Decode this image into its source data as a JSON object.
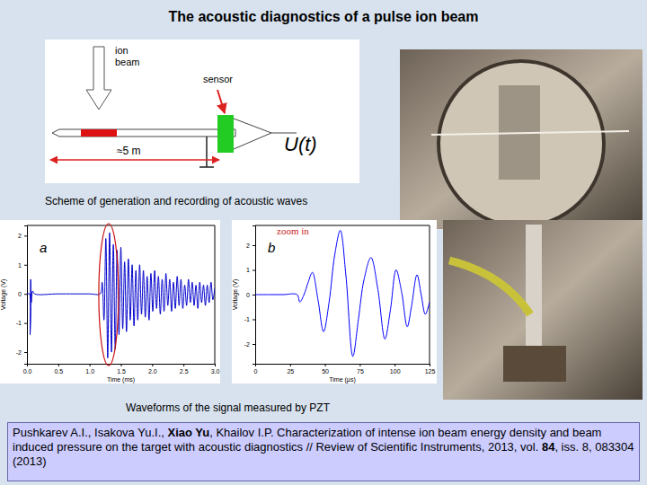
{
  "title": "The acoustic diagnostics of a pulse ion beam",
  "scheme": {
    "ion_beam_label": [
      "ion",
      "beam"
    ],
    "sensor_label": "sensor",
    "signal_label": "U(t)",
    "distance_label": "≈5 m",
    "caption": "Scheme of generation and recording of acoustic waves"
  },
  "chart_data": [
    {
      "type": "line",
      "panel_label": "a",
      "x_label": "Time (ms)",
      "y_label": "Voltage (V)",
      "xlim": [
        0,
        3.0
      ],
      "ylim": [
        -2.4,
        2.35
      ],
      "xticks": [
        {
          "value": 0,
          "label": "0.0"
        },
        {
          "value": 0.5,
          "label": "0.5"
        },
        {
          "value": 1.0,
          "label": "1.0"
        },
        {
          "value": 1.5,
          "label": "1.5"
        },
        {
          "value": 2.0,
          "label": "2.0"
        },
        {
          "value": 2.5,
          "label": "2.5"
        },
        {
          "value": 3.0,
          "label": "3.0"
        }
      ],
      "yticks": [
        -2,
        -1,
        0,
        1,
        2
      ],
      "grid": false,
      "x": [
        0.0,
        0.04,
        0.05,
        0.06,
        0.07,
        0.09,
        0.12,
        0.5,
        1.0,
        1.17,
        1.2,
        1.23,
        1.26,
        1.29,
        1.32,
        1.35,
        1.38,
        1.41,
        1.44,
        1.47,
        1.5,
        1.53,
        1.56,
        1.59,
        1.62,
        1.65,
        1.68,
        1.71,
        1.74,
        1.77,
        1.8,
        1.83,
        1.86,
        1.89,
        1.92,
        1.95,
        1.98,
        2.01,
        2.04,
        2.07,
        2.1,
        2.13,
        2.16,
        2.19,
        2.22,
        2.25,
        2.28,
        2.31,
        2.34,
        2.37,
        2.4,
        2.43,
        2.46,
        2.49,
        2.52,
        2.55,
        2.58,
        2.61,
        2.64,
        2.67,
        2.7,
        2.73,
        2.76,
        2.79,
        2.82,
        2.85,
        2.88,
        2.91,
        2.94,
        2.97,
        3.0
      ],
      "series": [
        {
          "color": "#0000cc",
          "values": [
            0,
            0,
            -1.4,
            0.5,
            -0.3,
            0.1,
            0,
            0,
            0,
            0,
            0.4,
            -0.9,
            1.9,
            -2.2,
            2.1,
            -2.0,
            1.7,
            -1.9,
            1.5,
            -1.4,
            1.6,
            -1.2,
            1.1,
            -1.3,
            1.2,
            -0.9,
            1.0,
            -1.1,
            0.8,
            -0.9,
            1.0,
            -0.7,
            0.8,
            -0.8,
            0.6,
            -0.9,
            0.7,
            -0.6,
            0.8,
            -0.5,
            0.6,
            -0.7,
            0.5,
            -0.6,
            0.7,
            -0.4,
            0.5,
            -0.6,
            0.4,
            -0.5,
            0.6,
            -0.4,
            0.5,
            -0.5,
            0.3,
            -0.4,
            0.5,
            -0.3,
            0.4,
            -0.4,
            0.3,
            -0.5,
            0.4,
            -0.3,
            0.3,
            -0.4,
            0.3,
            -0.3,
            0.4,
            -0.2,
            0.2
          ]
        }
      ]
    },
    {
      "type": "line",
      "panel_label": "b",
      "annotation": "zoom in",
      "x_label": "Time (µs)",
      "y_label": "Voltage (V)",
      "xlim": [
        0,
        125
      ],
      "ylim": [
        -2.8,
        2.8
      ],
      "xticks": [
        0,
        25,
        50,
        75,
        100,
        125
      ],
      "yticks": [
        -2,
        -1,
        0,
        1,
        2
      ],
      "grid": false,
      "x": [
        0,
        10,
        20,
        30,
        32,
        35,
        38,
        41,
        45,
        49,
        53,
        57,
        61,
        65,
        70,
        74,
        78,
        83,
        88,
        93,
        97,
        101,
        105,
        109,
        112,
        116,
        119,
        122,
        125
      ],
      "series": [
        {
          "color": "#0000ff",
          "values": [
            0,
            0,
            0,
            0,
            -0.3,
            0,
            0.5,
            0.9,
            -0.2,
            -1.5,
            -0.3,
            1.6,
            2.6,
            0.8,
            -2.5,
            -1.0,
            0.6,
            1.5,
            0.2,
            -1.8,
            -0.6,
            1.0,
            0.1,
            -1.3,
            -0.5,
            0.8,
            0.0,
            -0.8,
            -0.3
          ]
        }
      ]
    }
  ],
  "waveforms_caption": "Waveforms of the signal measured by PZT",
  "reference": [
    {
      "text": "Pushkarev A.I., Isakova Yu.I., ",
      "bold": false
    },
    {
      "text": "Xiao Yu",
      "bold": true
    },
    {
      "text": ", Khailov I.P. Characterization of intense ion beam energy density and beam induced pressure on the target with acoustic diagnostics // Review of Scientific Instruments, 2013,  vol. ",
      "bold": false
    },
    {
      "text": "84",
      "bold": true
    },
    {
      "text": ", iss. 8, 083304 (2013)",
      "bold": false
    }
  ]
}
